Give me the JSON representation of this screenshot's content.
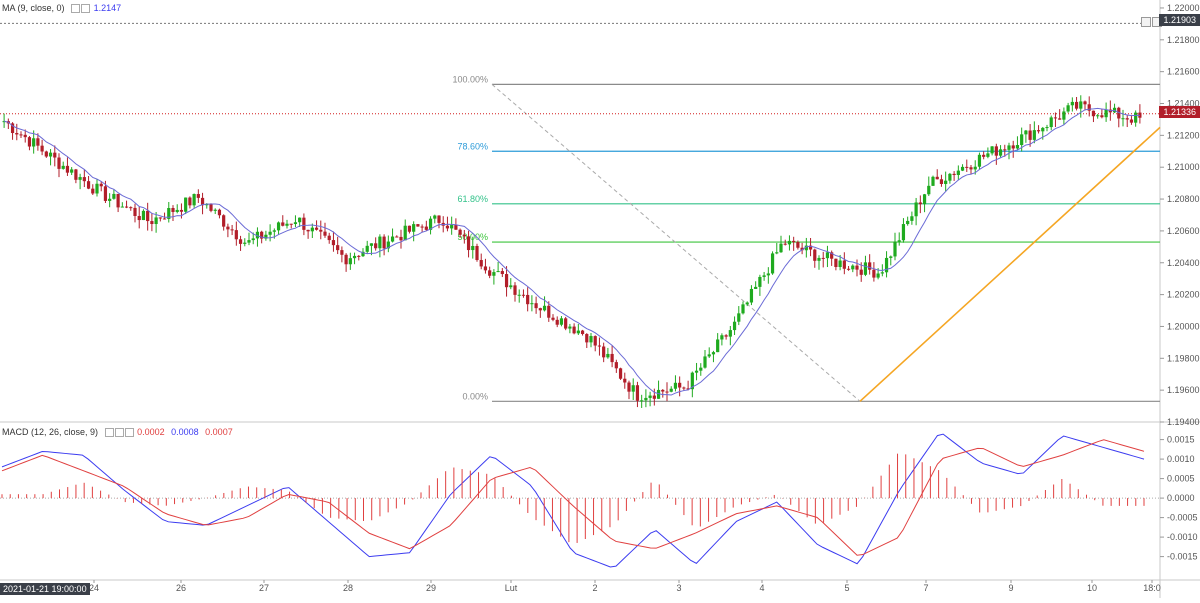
{
  "header": {
    "ma_label": "MA (9, close, 0)",
    "ma_value": "1.2147",
    "macd_label": "MACD (12, 26, close, 9)",
    "macd_values": [
      "0.0002",
      "0.0008",
      "0.0007"
    ]
  },
  "corner_date": "2021-01-21 19:00:00",
  "price_badges": {
    "last": "1.21336",
    "top": "1.21903"
  },
  "fib_labels": [
    "100.00%",
    "78.60%",
    "61.80%",
    "50.00%",
    "0.00%"
  ],
  "colors": {
    "up": "#1faa1f",
    "down": "#b21e2a",
    "ma": "#6b6bd6",
    "macd": "#3c3cf0",
    "signal": "#e04040",
    "hist": "#e04040",
    "fib100": "#8a8a8a",
    "fib786": "#2d9bd8",
    "fib618": "#33c28a",
    "fib50": "#3cc43c",
    "trend": "#f5a623",
    "lastline": "#d21e1e",
    "badge_last": "#b21e2a",
    "badge_top": "#3a3f48"
  },
  "chart_data": [
    {
      "type": "candlestick",
      "title": "",
      "ylim": [
        1.194,
        1.2205
      ],
      "y_ticks": [
        "1.22000",
        "1.21800",
        "1.21600",
        "1.21400",
        "1.21200",
        "1.21000",
        "1.20800",
        "1.20600",
        "1.20400",
        "1.20200",
        "1.20000",
        "1.19800",
        "1.19600",
        "1.19400"
      ],
      "x_ticks": [
        "24",
        "26",
        "27",
        "28",
        "29",
        "Lut",
        "2",
        "3",
        "4",
        "5",
        "7",
        "9",
        "10",
        "18:0"
      ],
      "overlays": [
        "MA (9, close, 0)",
        "Fibonacci retracement",
        "trend line"
      ],
      "fibonacci": {
        "high": 1.2152,
        "low": 1.1953,
        "levels": [
          {
            "label": "100.00%",
            "price": 1.2152
          },
          {
            "label": "78.60%",
            "price": 1.211
          },
          {
            "label": "61.80%",
            "price": 1.2077
          },
          {
            "label": "50.00%",
            "price": 1.2053
          },
          {
            "label": "0.00%",
            "price": 1.1953
          }
        ]
      },
      "last_price": 1.21336,
      "marked_price": 1.21903,
      "trend_points": [
        1.2129,
        1.2106,
        1.2084,
        1.2066,
        1.2081,
        1.2052,
        1.2068,
        1.2043,
        1.2056,
        1.2068,
        1.2035,
        1.2012,
        1.1994,
        1.1957,
        1.1962,
        1.2001,
        1.2053,
        1.2041,
        1.2034,
        1.2089,
        1.2105,
        1.212,
        1.2138,
        1.213
      ],
      "trend_anchor_pos": [
        0.0,
        0.042,
        0.085,
        0.128,
        0.171,
        0.214,
        0.257,
        0.3,
        0.343,
        0.386,
        0.429,
        0.472,
        0.514,
        0.557,
        0.6,
        0.643,
        0.686,
        0.729,
        0.771,
        0.814,
        0.857,
        0.9,
        0.943,
        1.0
      ]
    },
    {
      "type": "macd",
      "title": "MACD (12, 26, close, 9)",
      "ylim": [
        -0.0021,
        0.0019
      ],
      "y_ticks": [
        "0.0015",
        "0.0010",
        "0.0005",
        "0.0000",
        "-0.0005",
        "-0.0010",
        "-0.0015"
      ],
      "macd_points": [
        0.0008,
        0.0012,
        0.0011,
        0.0002,
        -0.0006,
        -0.0007,
        -0.0002,
        0.0003,
        -0.0006,
        -0.0015,
        -0.0014,
        0.0001,
        0.0011,
        0.0003,
        -0.0014,
        -0.0018,
        -0.0008,
        -0.0017,
        -0.0006,
        -0.0001,
        -0.0012,
        -0.0017,
        0.0002,
        0.0017,
        0.0009,
        0.0006,
        0.0016,
        0.0013,
        0.001
      ],
      "signal_points": [
        0.0007,
        0.0011,
        0.0007,
        0.0003,
        -0.0004,
        -0.0007,
        -0.0005,
        0.0001,
        -0.0001,
        -0.0009,
        -0.0013,
        -0.0007,
        0.0005,
        0.0008,
        -0.0002,
        -0.0011,
        -0.0013,
        -0.0009,
        -0.0004,
        -0.0002,
        -0.0005,
        -0.0015,
        -0.001,
        0.001,
        0.0013,
        0.0008,
        0.0011,
        0.0015,
        0.0012
      ],
      "macd_pos": [
        0.0,
        0.032,
        0.07,
        0.11,
        0.15,
        0.2,
        0.24,
        0.26,
        0.3,
        0.33,
        0.37,
        0.42,
        0.44,
        0.48,
        0.54,
        0.57,
        0.62,
        0.69,
        0.72,
        0.75,
        0.79,
        0.85,
        0.88,
        0.92,
        0.96,
        0.97,
        0.99,
        1.0,
        1.0
      ]
    }
  ]
}
